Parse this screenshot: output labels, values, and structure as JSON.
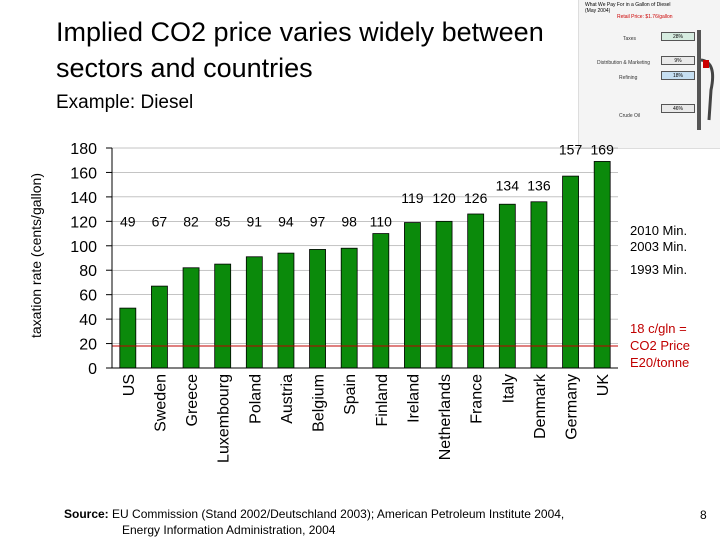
{
  "slide": {
    "title": "Implied CO2 price varies widely between sectors and countries",
    "subtitle": "Example: Diesel",
    "source_label": "Source:",
    "source_line1": "EU Commission (Stand 2002/Deutschland 2003); American Petroleum Institute 2004,",
    "source_line2": "Energy Information Administration, 2004",
    "page_number": "8",
    "legend": {
      "min2010": "2010 Min.",
      "min2003": "2003 Min.",
      "min1993": "1993 Min.",
      "co2_line1": "18 c/gln =",
      "co2_line2": "CO2 Price",
      "co2_line3": "E20/tonne"
    },
    "inset": {
      "title": "What We Pay For in a Gallon of Diesel (May 2004)",
      "retail": "Retail Price: $1.76/gallon",
      "rows": [
        {
          "label": "Taxes",
          "value": "28%"
        },
        {
          "label": "Distribution & Marketing",
          "value": "9%"
        },
        {
          "label": "Refining",
          "value": "18%"
        },
        {
          "label": "Crude Oil",
          "value": "46%"
        }
      ]
    }
  },
  "chart_data": {
    "type": "bar",
    "categories": [
      "US",
      "Sweden",
      "Greece",
      "Luxembourg",
      "Poland",
      "Austria",
      "Belgium",
      "Spain",
      "Finland",
      "Ireland",
      "Netherlands",
      "France",
      "Italy",
      "Denmark",
      "Germany",
      "UK"
    ],
    "values": [
      49,
      67,
      82,
      85,
      91,
      94,
      97,
      98,
      110,
      119,
      120,
      126,
      134,
      136,
      157,
      169
    ],
    "ylabel": "taxation rate (cents/gallon)",
    "ylim": [
      0,
      180
    ],
    "yticks": [
      0,
      20,
      40,
      60,
      80,
      100,
      120,
      140,
      160,
      180
    ],
    "reference_lines": [
      {
        "label": "2010 Min.",
        "value": 0
      },
      {
        "label": "2003 Min.",
        "value": 0
      },
      {
        "label": "1993 Min.",
        "value": 0
      },
      {
        "label": "18 c/gln = CO2 Price E20/tonne",
        "value": 18
      }
    ],
    "colors": {
      "bar": "#0b8a0b",
      "bar_stroke": "#000000",
      "co2_line": "#c00000",
      "grid": "#888888"
    }
  }
}
